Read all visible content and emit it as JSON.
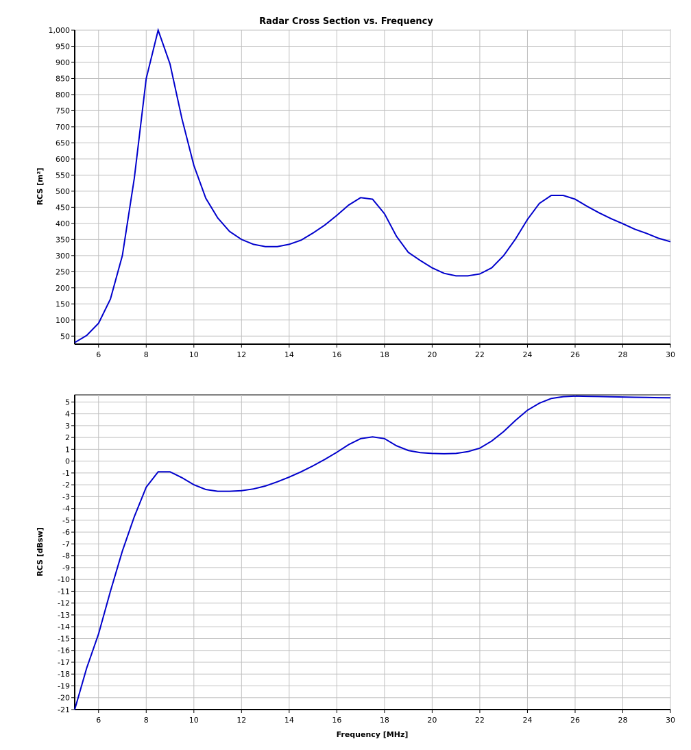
{
  "chart_data": [
    {
      "type": "line",
      "title": "Radar Cross Section vs. Frequency",
      "xlabel": "",
      "ylabel": "RCS [m²]",
      "xlim": [
        5,
        30
      ],
      "ylim": [
        25,
        1000
      ],
      "xticks": [
        6,
        8,
        10,
        12,
        14,
        16,
        18,
        20,
        22,
        24,
        26,
        28,
        30
      ],
      "yticks": [
        50,
        100,
        150,
        200,
        250,
        300,
        350,
        400,
        450,
        500,
        550,
        600,
        650,
        700,
        750,
        800,
        850,
        900,
        950,
        1000
      ],
      "ytick_labels": [
        "50",
        "100",
        "150",
        "200",
        "250",
        "300",
        "350",
        "400",
        "450",
        "500",
        "550",
        "600",
        "650",
        "700",
        "750",
        "800",
        "850",
        "900",
        "950",
        "1,000"
      ],
      "grid": true,
      "line_color": "#0000cc",
      "series": [
        {
          "x": [
            5,
            5.5,
            6,
            6.5,
            7,
            7.5,
            8,
            8.5,
            9,
            9.5,
            10,
            10.5,
            11,
            11.5,
            12,
            12.5,
            13,
            13.5,
            14,
            14.5,
            15,
            15.5,
            16,
            16.5,
            17,
            17.5,
            18,
            18.5,
            19,
            19.5,
            20,
            20.5,
            21,
            21.5,
            22,
            22.5,
            23,
            23.5,
            24,
            24.5,
            25,
            25.5,
            26,
            26.5,
            27,
            27.5,
            28,
            28.5,
            29,
            29.5,
            30
          ],
          "y": [
            30,
            52,
            90,
            165,
            300,
            540,
            850,
            1000,
            895,
            725,
            580,
            478,
            417,
            375,
            350,
            335,
            328,
            328,
            335,
            348,
            370,
            395,
            425,
            457,
            480,
            475,
            430,
            360,
            310,
            285,
            262,
            245,
            237,
            237,
            243,
            262,
            300,
            352,
            412,
            462,
            487,
            487,
            475,
            453,
            433,
            415,
            399,
            382,
            369,
            354,
            343
          ]
        }
      ]
    },
    {
      "type": "line",
      "title": "",
      "xlabel": "Frequency [MHz]",
      "ylabel": "RCS [dBsw]",
      "xlim": [
        5,
        30
      ],
      "ylim": [
        -21,
        5.6
      ],
      "xticks": [
        6,
        8,
        10,
        12,
        14,
        16,
        18,
        20,
        22,
        24,
        26,
        28,
        30
      ],
      "yticks": [
        -21,
        -20,
        -19,
        -18,
        -17,
        -16,
        -15,
        -14,
        -13,
        -12,
        -11,
        -10,
        -9,
        -8,
        -7,
        -6,
        -5,
        -4,
        -3,
        -2,
        -1,
        0,
        1,
        2,
        3,
        4,
        5
      ],
      "grid": true,
      "line_color": "#0000cc",
      "series": [
        {
          "x": [
            5,
            5.5,
            6,
            6.5,
            7,
            7.5,
            8,
            8.5,
            9,
            9.5,
            10,
            10.5,
            11,
            11.5,
            12,
            12.5,
            13,
            13.5,
            14,
            14.5,
            15,
            15.5,
            16,
            16.5,
            17,
            17.5,
            18,
            18.5,
            19,
            19.5,
            20,
            20.5,
            21,
            21.5,
            22,
            22.5,
            23,
            23.5,
            24,
            24.5,
            25,
            25.5,
            26,
            26.5,
            27,
            27.5,
            28,
            28.5,
            29,
            29.5,
            30
          ],
          "y": [
            -21,
            -17.5,
            -14.6,
            -11,
            -7.6,
            -4.7,
            -2.2,
            -0.9,
            -0.9,
            -1.4,
            -2,
            -2.4,
            -2.55,
            -2.55,
            -2.5,
            -2.35,
            -2.1,
            -1.75,
            -1.35,
            -0.9,
            -0.4,
            0.15,
            0.75,
            1.4,
            1.9,
            2.05,
            1.9,
            1.3,
            0.9,
            0.72,
            0.65,
            0.62,
            0.65,
            0.8,
            1.1,
            1.7,
            2.5,
            3.45,
            4.3,
            4.9,
            5.3,
            5.45,
            5.5,
            5.48,
            5.46,
            5.44,
            5.42,
            5.4,
            5.38,
            5.36,
            5.35
          ]
        }
      ]
    }
  ]
}
